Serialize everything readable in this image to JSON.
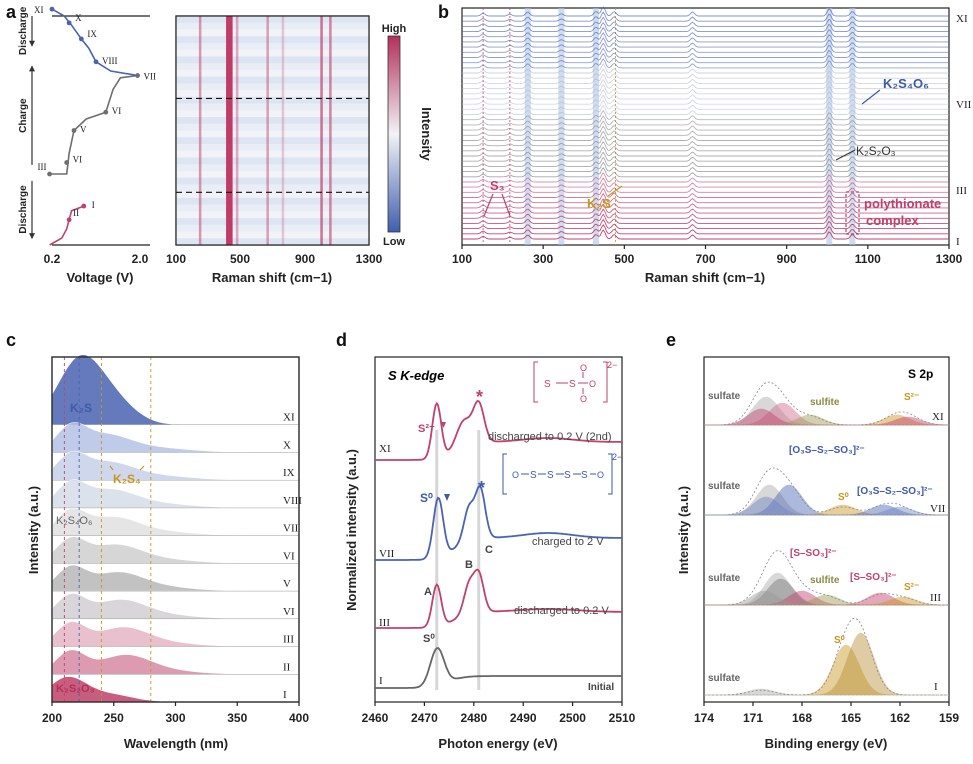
{
  "panels": {
    "a": "a",
    "b": "b",
    "c": "c",
    "d": "d",
    "e": "e"
  },
  "colors": {
    "pink": "#c0416a",
    "blue": "#4a63b2",
    "gray": "#6e6e6e",
    "gold": "#c8961e",
    "olive": "#8a8a45",
    "light_blue": "#aec3e6"
  },
  "chart_data": [
    {
      "id": "a-left",
      "type": "line",
      "xlabel": "Voltage (V)",
      "x_ticks": [
        "0.2",
        "2.0"
      ],
      "stage_labels": [
        "Discharge",
        "Charge",
        "Discharge"
      ],
      "point_labels": [
        "I",
        "II",
        "III",
        "VI",
        "V",
        "VI",
        "VII",
        "VIII",
        "IX",
        "X",
        "XI"
      ],
      "segments": [
        {
          "name": "discharge-1",
          "color": "pink",
          "points": [
            [
              0.15,
              0
            ],
            [
              0.4,
              0.03
            ],
            [
              0.5,
              0.07
            ],
            [
              0.55,
              0.11
            ],
            [
              0.6,
              0.15
            ],
            [
              0.85,
              0.17
            ]
          ]
        },
        {
          "name": "charge",
          "color": "gray",
          "points": [
            [
              0.15,
              0.31
            ],
            [
              0.5,
              0.31
            ],
            [
              0.55,
              0.4
            ],
            [
              0.65,
              0.5
            ],
            [
              0.9,
              0.55
            ],
            [
              1.3,
              0.58
            ],
            [
              1.45,
              0.68
            ],
            [
              1.6,
              0.73
            ],
            [
              1.95,
              0.74
            ]
          ]
        },
        {
          "name": "discharge-2",
          "color": "blue",
          "points": [
            [
              1.95,
              0.74
            ],
            [
              1.4,
              0.76
            ],
            [
              1.1,
              0.8
            ],
            [
              0.95,
              0.86
            ],
            [
              0.8,
              0.9
            ],
            [
              0.6,
              0.96
            ],
            [
              0.45,
              1.0
            ],
            [
              0.2,
              1.03
            ]
          ]
        }
      ]
    },
    {
      "id": "a-right",
      "type": "heatmap",
      "xlabel": "Raman shift (cm−1)",
      "x_ticks": [
        "100",
        "500",
        "900",
        "1300"
      ],
      "xlim": [
        100,
        1300
      ],
      "colorbar_label": "Intensity",
      "colorbar_high": "High",
      "colorbar_low": "Low",
      "bands": [
        {
          "shift": 430,
          "weight": 1.0
        },
        {
          "shift": 445,
          "weight": 0.8
        },
        {
          "shift": 480,
          "weight": 0.4
        },
        {
          "shift": 670,
          "weight": 0.45
        },
        {
          "shift": 765,
          "weight": 0.25
        },
        {
          "shift": 1005,
          "weight": 0.7
        },
        {
          "shift": 1060,
          "weight": 0.6
        },
        {
          "shift": 250,
          "weight": 0.5
        }
      ],
      "dashed_fractions": [
        0.36,
        0.77
      ]
    },
    {
      "id": "b",
      "type": "line",
      "xlabel": "Raman shift (cm−1)",
      "x_ticks": [
        "100",
        "300",
        "500",
        "700",
        "900",
        "1100",
        "1300"
      ],
      "xlim": [
        100,
        1300
      ],
      "curve_count": 44,
      "peaks": [
        {
          "shift": 152,
          "height": 0.3
        },
        {
          "shift": 218,
          "height": 0.2
        },
        {
          "shift": 262,
          "height": 0.45
        },
        {
          "shift": 345,
          "height": 0.25
        },
        {
          "shift": 430,
          "height": 0.5
        },
        {
          "shift": 448,
          "height": 1.0
        },
        {
          "shift": 475,
          "height": 0.5
        },
        {
          "shift": 668,
          "height": 0.45
        },
        {
          "shift": 1005,
          "height": 0.8
        },
        {
          "shift": 1062,
          "height": 0.5
        }
      ],
      "highlight_bands": [
        262,
        345,
        430,
        1005,
        1062
      ],
      "stage_labels": [
        "XI",
        "VII",
        "III",
        "I"
      ],
      "annotations": {
        "s3": "S₃",
        "k2s": "K₂S",
        "k2s2o3": "K₂S₂O₃",
        "k2s4o6": "K₂S₄O₆",
        "polythionate": "polythionate",
        "complex": "complex"
      }
    },
    {
      "id": "c",
      "type": "area",
      "xlabel": "Wavelength (nm)",
      "ylabel": "Intensity (a.u.)",
      "x_ticks": [
        "200",
        "250",
        "300",
        "350",
        "400"
      ],
      "xlim": [
        200,
        400
      ],
      "stage_labels": [
        "XI",
        "X",
        "IX",
        "VIII",
        "VII",
        "VI",
        "V",
        "VI",
        "III",
        "II",
        "I"
      ],
      "reference_lines_nm": [
        210,
        222,
        240,
        280
      ],
      "annotations": {
        "k2s": "K₂S",
        "k2s4": "K₂S₄",
        "k2s4o6": "K₂S₄O₆",
        "k2s2o3": "K₂S₂O₃"
      }
    },
    {
      "id": "d",
      "type": "line",
      "title": "S K-edge",
      "xlabel": "Photon energy (eV)",
      "ylabel": "Normalized intensity (a.u.)",
      "x_ticks": [
        "2460",
        "2470",
        "2480",
        "2490",
        "2500",
        "2510"
      ],
      "xlim": [
        2460,
        2510
      ],
      "series": [
        {
          "name": "XI",
          "label": "discharged to 0.2 V (2nd)",
          "color": "pink"
        },
        {
          "name": "VII",
          "label": "charged to 2 V",
          "color": "blue"
        },
        {
          "name": "III",
          "label": "discharged to 0.2 V",
          "color": "pink"
        },
        {
          "name": "I",
          "label": "Initial",
          "color": "gray"
        }
      ],
      "reference_lines_eV": [
        2472.5,
        2481
      ],
      "annotations": {
        "s2": "S²⁻",
        "s0": "S⁰",
        "s0b": "S⁰",
        "a": "A",
        "b": "B",
        "c": "C"
      }
    },
    {
      "id": "e",
      "type": "area",
      "title": "S 2p",
      "xlabel": "Binding energy (eV)",
      "ylabel": "Intensity (a.u.)",
      "x_ticks": [
        "174",
        "171",
        "168",
        "165",
        "162",
        "159"
      ],
      "xlim": [
        174,
        159
      ],
      "series": [
        {
          "name": "XI",
          "labels": [
            "sulfate",
            "sulfite",
            "S²⁻"
          ]
        },
        {
          "name": "VII",
          "labels": [
            "sulfate",
            "[O₃S–S₂–SO₃]²⁻",
            "S⁰",
            "[O₃S–S₂–SO₃]²⁻"
          ]
        },
        {
          "name": "III",
          "labels": [
            "sulfate",
            "[S–SO₃]²⁻",
            "sulfite",
            "[S–SO₃]²⁻",
            "S²⁻"
          ]
        },
        {
          "name": "I",
          "labels": [
            "sulfate",
            "S⁰"
          ]
        }
      ]
    }
  ]
}
